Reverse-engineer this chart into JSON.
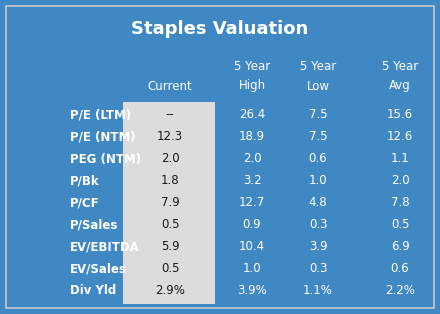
{
  "title": "Staples Valuation",
  "col_headers_line1": [
    "5 Year",
    "5 Year",
    "5 Year"
  ],
  "col_headers_line2": [
    "Current",
    "High",
    "Low",
    "Avg"
  ],
  "rows": [
    [
      "P/E (LTM)",
      "--",
      "26.4",
      "7.5",
      "15.6"
    ],
    [
      "P/E (NTM)",
      "12.3",
      "18.9",
      "7.5",
      "12.6"
    ],
    [
      "PEG (NTM)",
      "2.0",
      "2.0",
      "0.6",
      "1.1"
    ],
    [
      "P/Bk",
      "1.8",
      "3.2",
      "1.0",
      "2.0"
    ],
    [
      "P/CF",
      "7.9",
      "12.7",
      "4.8",
      "7.8"
    ],
    [
      "P/Sales",
      "0.5",
      "0.9",
      "0.3",
      "0.5"
    ],
    [
      "EV/EBITDA",
      "5.9",
      "10.4",
      "3.9",
      "6.9"
    ],
    [
      "EV/Sales",
      "0.5",
      "1.0",
      "0.3",
      "0.6"
    ],
    [
      "Div Yld",
      "2.9%",
      "3.9%",
      "1.1%",
      "2.2%"
    ]
  ],
  "bg_color": "#4088C4",
  "title_color": "#FFFFFF",
  "header_color": "#FFFFFF",
  "row_label_color": "#FFFFFF",
  "data_color_current": "#1A1A1A",
  "data_color_other": "#FFFFFF",
  "current_col_bg": "#DCDCDC",
  "border_color": "#C8C8C8",
  "title_fontsize": 13,
  "header_fontsize": 8.5,
  "data_fontsize": 8.5,
  "label_fontsize": 8.5
}
